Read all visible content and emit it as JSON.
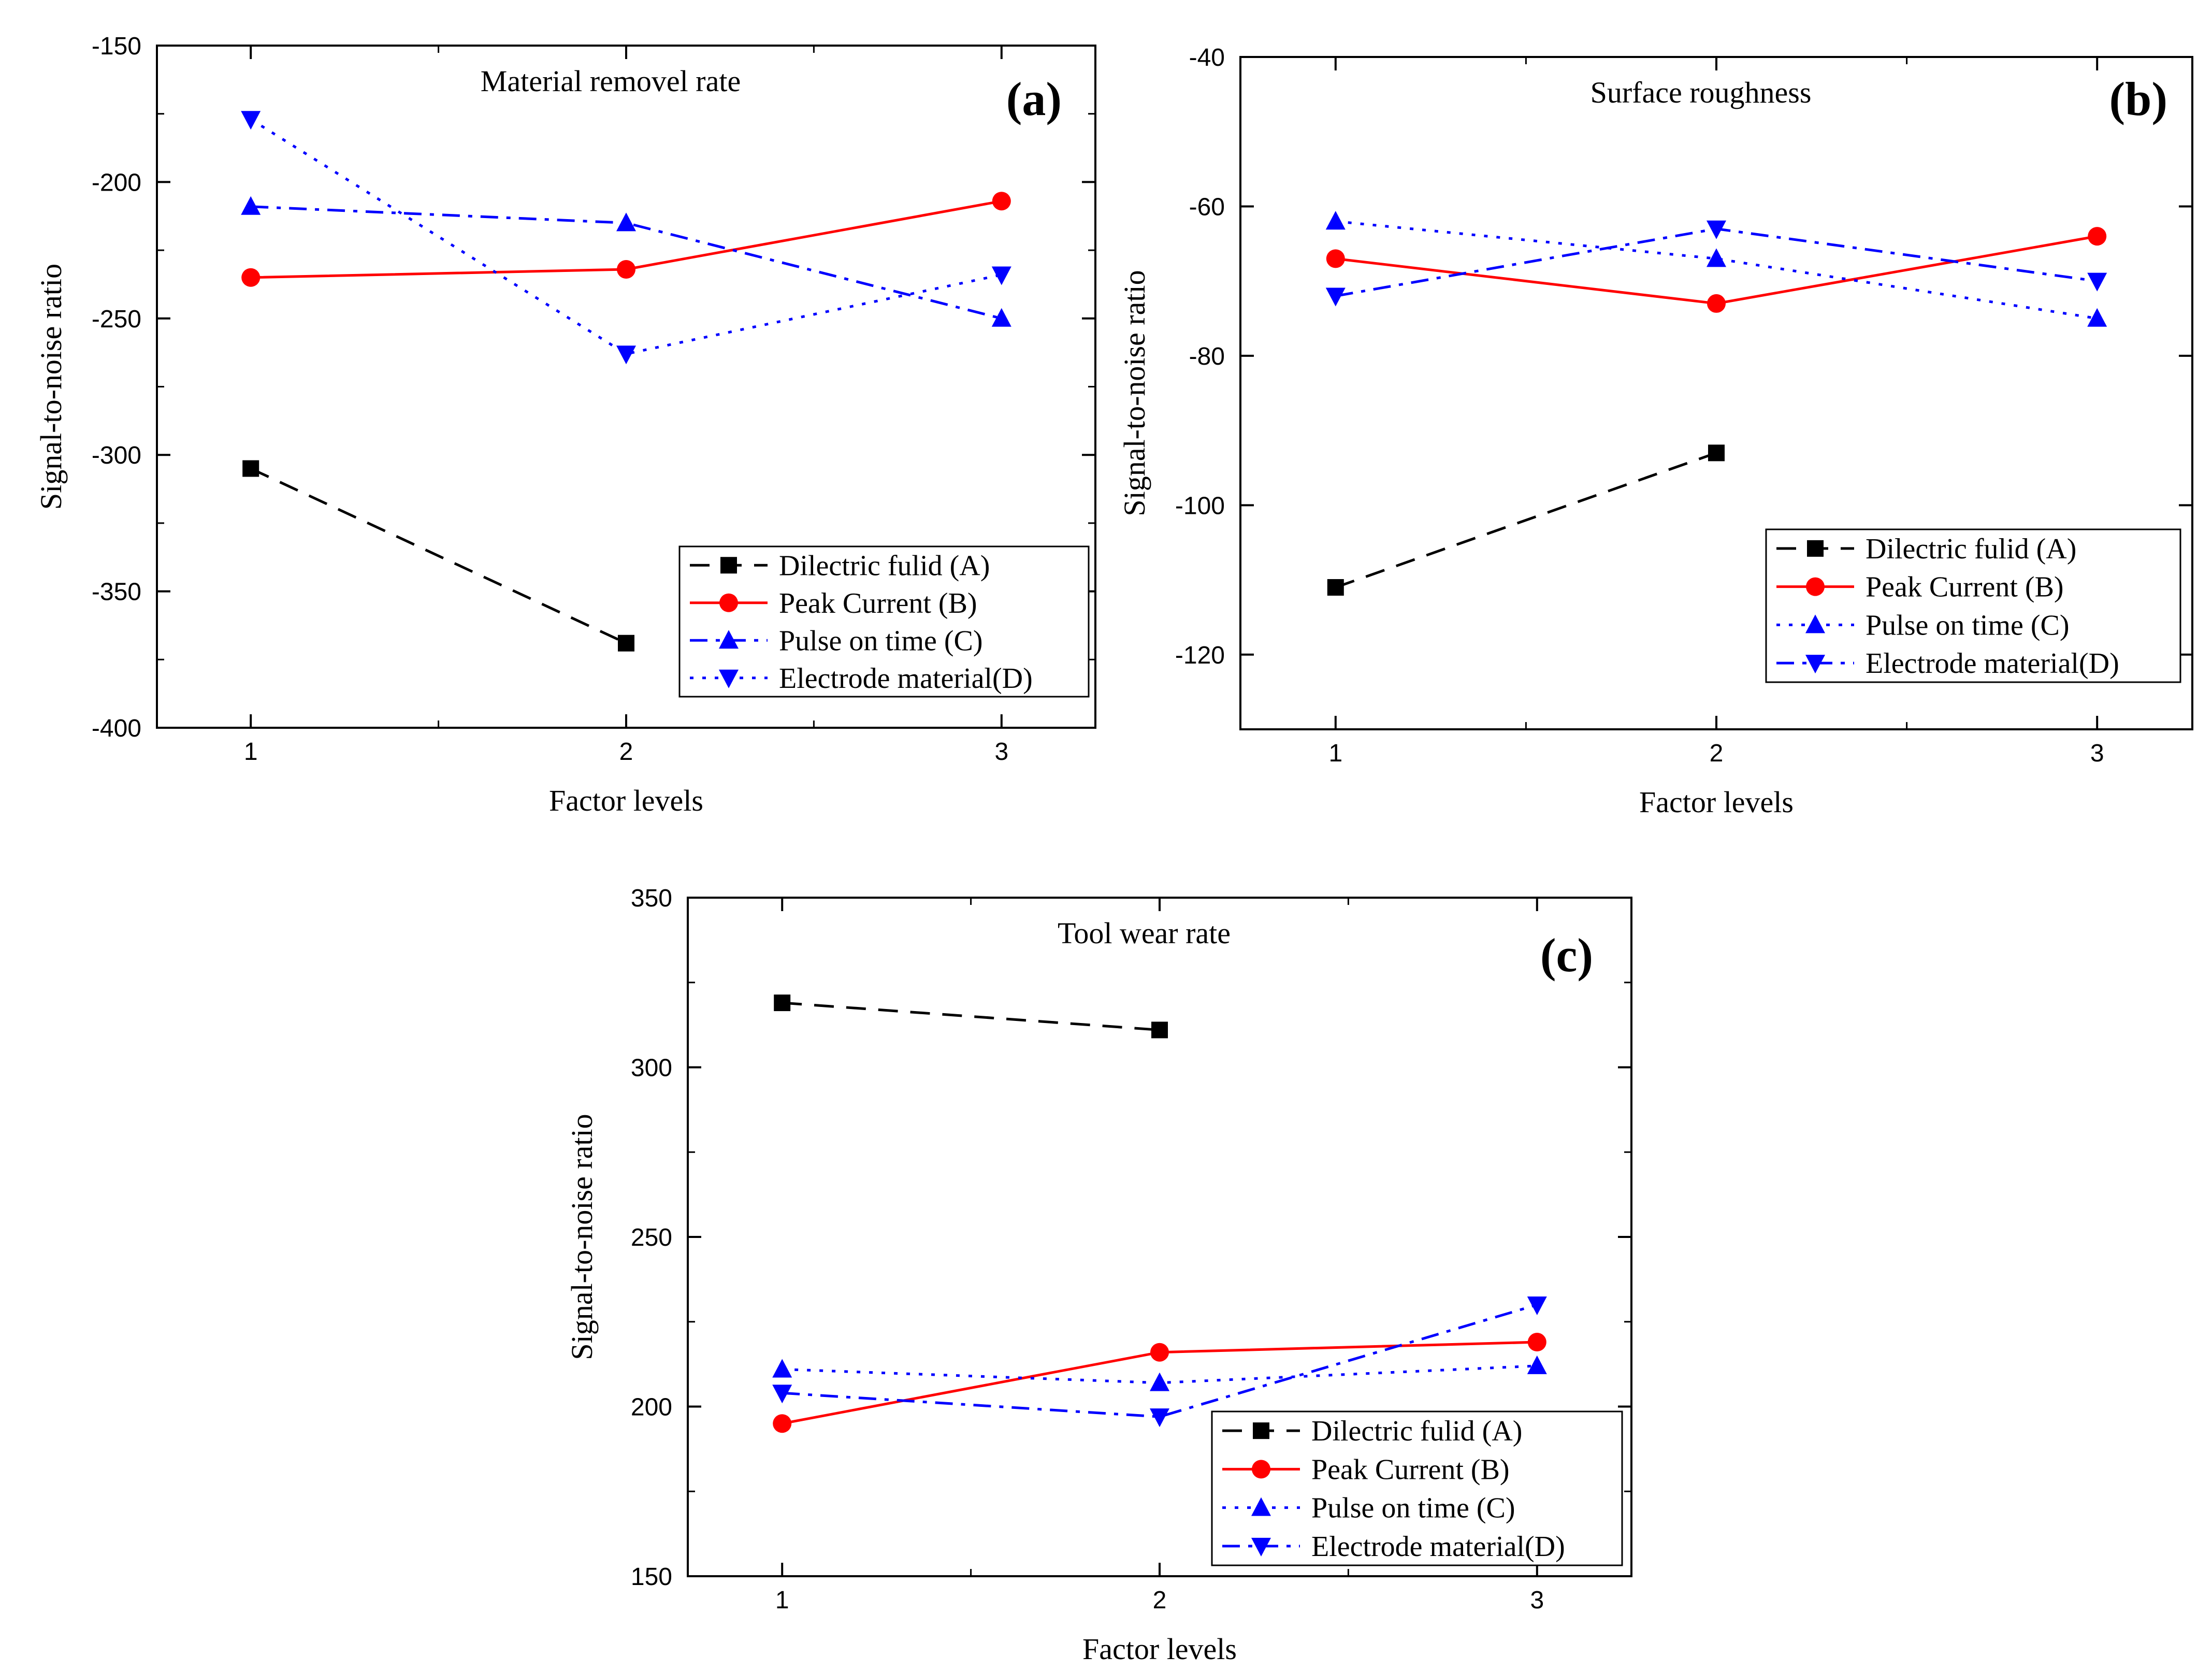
{
  "chart_data": [
    {
      "type": "line",
      "panel_label": "(a)",
      "title": "Material removel rate",
      "xlabel": "Factor levels",
      "ylabel": "Signal-to-noise ratio",
      "x": [
        1,
        2,
        3
      ],
      "x_ticks": [
        "1",
        "2",
        "3"
      ],
      "y_ticks": [
        "-150",
        "-200",
        "-250",
        "-300",
        "-350",
        "-400"
      ],
      "ylim": [
        -400,
        -150
      ],
      "legend_position": "bottom-right",
      "series": [
        {
          "name": "Dilectric fulid (A)",
          "values": [
            -305,
            -369,
            null
          ],
          "color": "#000000",
          "marker": "square",
          "dash": "dashed"
        },
        {
          "name": "Peak Current (B)",
          "values": [
            -235,
            -232,
            -207
          ],
          "color": "#ff0000",
          "marker": "circle",
          "dash": "solid"
        },
        {
          "name": "Pulse on time (C)",
          "values": [
            -209,
            -215,
            -250
          ],
          "color": "#0000ff",
          "marker": "triangle-up",
          "dash": "dashdot"
        },
        {
          "name": "Electrode material(D)",
          "values": [
            -177,
            -263,
            -234
          ],
          "color": "#0000ff",
          "marker": "triangle-down",
          "dash": "dotted"
        }
      ]
    },
    {
      "type": "line",
      "panel_label": "(b)",
      "title": "Surface roughness",
      "xlabel": "Factor levels",
      "ylabel": "Signal-to-noise ratio",
      "x": [
        1,
        2,
        3
      ],
      "x_ticks": [
        "1",
        "2",
        "3"
      ],
      "y_ticks": [
        "-40",
        "-60",
        "-80",
        "-100",
        "-120"
      ],
      "ylim": [
        -130,
        -40
      ],
      "legend_position": "bottom-right",
      "series": [
        {
          "name": "Dilectric fulid (A)",
          "values": [
            -111,
            -93,
            null
          ],
          "color": "#000000",
          "marker": "square",
          "dash": "dashed"
        },
        {
          "name": "Peak Current (B)",
          "values": [
            -67,
            -73,
            -64
          ],
          "color": "#ff0000",
          "marker": "circle",
          "dash": "solid"
        },
        {
          "name": "Pulse on time (C)",
          "values": [
            -62,
            -67,
            -75
          ],
          "color": "#0000ff",
          "marker": "triangle-up",
          "dash": "dotted"
        },
        {
          "name": "Electrode material(D)",
          "values": [
            -72,
            -63,
            -70
          ],
          "color": "#0000ff",
          "marker": "triangle-down",
          "dash": "dashdot"
        }
      ]
    },
    {
      "type": "line",
      "panel_label": "(c)",
      "title": "Tool wear rate",
      "xlabel": "Factor levels",
      "ylabel": "Signal-to-noise ratio",
      "x": [
        1,
        2,
        3
      ],
      "x_ticks": [
        "1",
        "2",
        "3"
      ],
      "y_ticks": [
        "350",
        "300",
        "250",
        "200",
        "150"
      ],
      "ylim": [
        150,
        350
      ],
      "legend_position": "bottom-right",
      "series": [
        {
          "name": "Dilectric fulid (A)",
          "values": [
            319,
            311,
            null
          ],
          "color": "#000000",
          "marker": "square",
          "dash": "dashed"
        },
        {
          "name": "Peak Current (B)",
          "values": [
            195,
            216,
            219
          ],
          "color": "#ff0000",
          "marker": "circle",
          "dash": "solid"
        },
        {
          "name": "Pulse on time (C)",
          "values": [
            211,
            207,
            212
          ],
          "color": "#0000ff",
          "marker": "triangle-up",
          "dash": "dotted"
        },
        {
          "name": "Electrode material(D)",
          "values": [
            204,
            197,
            230
          ],
          "color": "#0000ff",
          "marker": "triangle-down",
          "dash": "dashdot"
        }
      ]
    }
  ]
}
